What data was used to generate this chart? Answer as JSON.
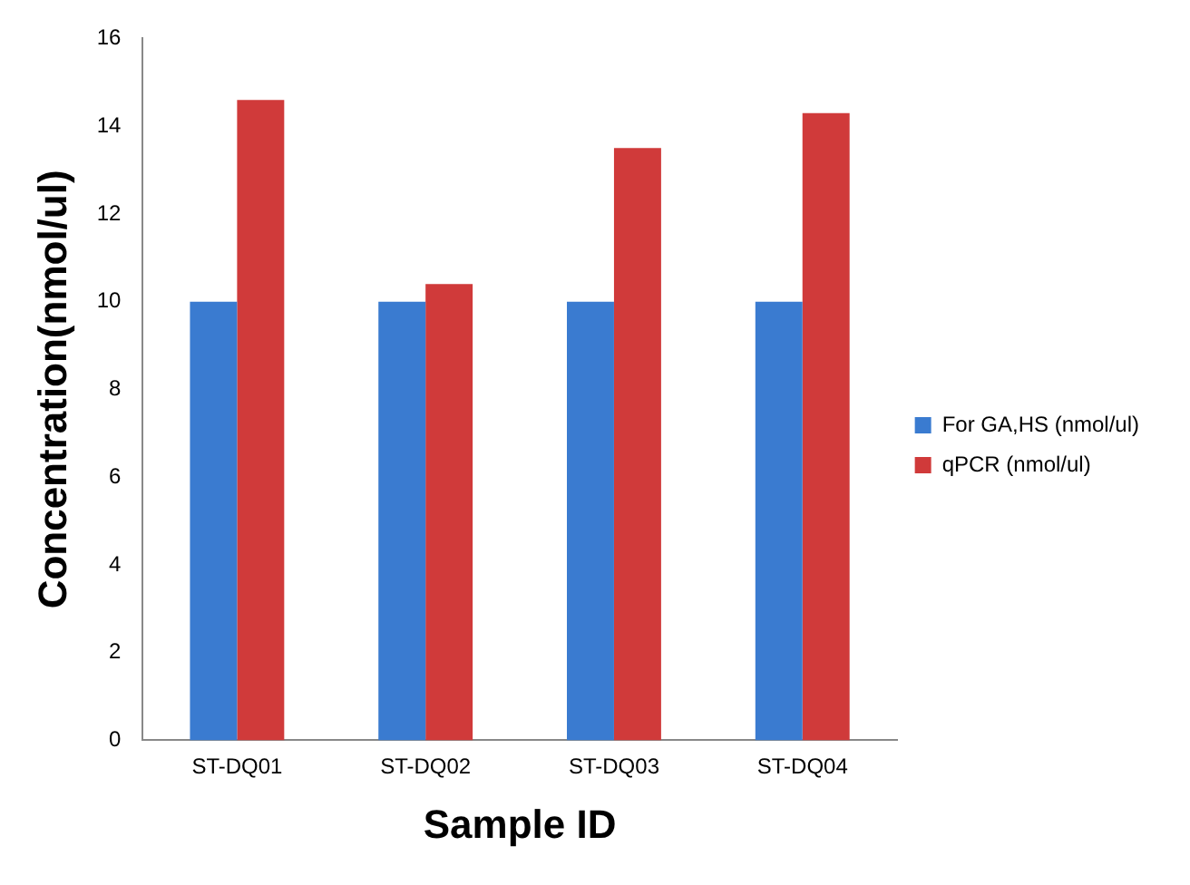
{
  "chart_data": {
    "type": "bar",
    "xlabel": "Sample ID",
    "ylabel": "Concentration(nmol/ul)",
    "categories": [
      "ST-DQ01",
      "ST-DQ02",
      "ST-DQ03",
      "ST-DQ04"
    ],
    "series": [
      {
        "name": "For GA,HS (nmol/ul)",
        "color": "#3a7bd0",
        "values": [
          10,
          10,
          10,
          10
        ]
      },
      {
        "name": "qPCR (nmol/ul)",
        "color": "#d03a3a",
        "values": [
          14.6,
          10.4,
          13.5,
          14.3
        ]
      }
    ],
    "ylim": [
      0,
      16
    ],
    "yticks": [
      0,
      2,
      4,
      6,
      8,
      10,
      12,
      14,
      16
    ],
    "grid": false,
    "legend": "right"
  }
}
